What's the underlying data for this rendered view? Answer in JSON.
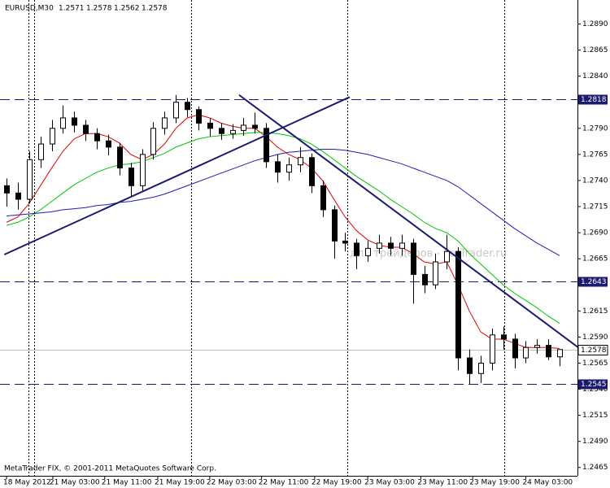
{
  "chart_data": {
    "type": "candlestick",
    "title": "EURUSD,M30",
    "footer": "MetaTrader FIX, © 2001-2011 MetaQuotes Software Corp.",
    "watermark": "для трейдеров - ForTrader.ru",
    "open": [
      1.2735,
      1.2728,
      1.2722,
      1.276,
      1.2775,
      1.279,
      1.28,
      1.2793,
      1.2785,
      1.2778,
      1.2772,
      1.2752,
      1.2735,
      1.2765,
      1.279,
      1.28,
      1.2815,
      1.2808,
      1.2795,
      1.279,
      1.2785,
      1.2788,
      1.2793,
      1.279,
      1.2758,
      1.2748,
      1.2755,
      1.2762,
      1.2735,
      1.2712,
      1.2682,
      1.268,
      1.2668,
      1.2675,
      1.268,
      1.2675,
      1.268,
      1.265,
      1.264,
      1.2662,
      1.2672,
      1.257,
      1.2555,
      1.2565,
      1.2592,
      1.2588,
      1.257,
      1.258,
      1.2582,
      1.2571
    ],
    "high": [
      1.2742,
      1.2738,
      1.2768,
      1.2782,
      1.2798,
      1.2812,
      1.2806,
      1.2798,
      1.279,
      1.2784,
      1.2776,
      1.2757,
      1.277,
      1.2796,
      1.2806,
      1.2822,
      1.2819,
      1.2811,
      1.28,
      1.2795,
      1.2794,
      1.28,
      1.2805,
      1.2795,
      1.2765,
      1.2762,
      1.2772,
      1.2766,
      1.274,
      1.2716,
      1.269,
      1.2684,
      1.2682,
      1.2688,
      1.2686,
      1.2688,
      1.2684,
      1.2658,
      1.267,
      1.2688,
      1.2676,
      1.2578,
      1.2572,
      1.2598,
      1.26,
      1.2593,
      1.2586,
      1.2588,
      1.2588,
      1.2578
    ],
    "low": [
      1.2715,
      1.2712,
      1.2718,
      1.2752,
      1.2768,
      1.2785,
      1.2786,
      1.2778,
      1.277,
      1.2764,
      1.2745,
      1.2725,
      1.273,
      1.276,
      1.2784,
      1.2795,
      1.2801,
      1.2788,
      1.2782,
      1.2779,
      1.278,
      1.2783,
      1.2785,
      1.2752,
      1.2738,
      1.274,
      1.2748,
      1.2728,
      1.2705,
      1.2665,
      1.2672,
      1.2655,
      1.2662,
      1.267,
      1.2668,
      1.2668,
      1.2622,
      1.2632,
      1.2636,
      1.2655,
      1.2558,
      1.2545,
      1.2546,
      1.2558,
      1.2578,
      1.256,
      1.2565,
      1.2574,
      1.2568,
      1.2562
    ],
    "close": [
      1.2728,
      1.2722,
      1.276,
      1.2775,
      1.279,
      1.28,
      1.2793,
      1.2785,
      1.2778,
      1.2772,
      1.2752,
      1.2735,
      1.2765,
      1.279,
      1.28,
      1.2815,
      1.2808,
      1.2795,
      1.279,
      1.2785,
      1.2788,
      1.2793,
      1.279,
      1.2758,
      1.2748,
      1.2755,
      1.2762,
      1.2735,
      1.2712,
      1.2682,
      1.268,
      1.2668,
      1.2675,
      1.268,
      1.2675,
      1.268,
      1.265,
      1.264,
      1.2662,
      1.2672,
      1.257,
      1.2555,
      1.2565,
      1.2592,
      1.2588,
      1.257,
      1.258,
      1.2582,
      1.2571,
      1.2578
    ],
    "series": [
      {
        "color": "#e00000",
        "values": [
          1.27,
          1.2705,
          1.2718,
          1.2735,
          1.2752,
          1.2768,
          1.278,
          1.2785,
          1.2785,
          1.2782,
          1.2776,
          1.2765,
          1.276,
          1.2765,
          1.2775,
          1.279,
          1.28,
          1.2803,
          1.28,
          1.2795,
          1.2792,
          1.279,
          1.279,
          1.2782,
          1.2772,
          1.2765,
          1.276,
          1.2752,
          1.274,
          1.2722,
          1.2705,
          1.2692,
          1.2683,
          1.2678,
          1.2676,
          1.2676,
          1.267,
          1.2662,
          1.266,
          1.2662,
          1.264,
          1.2615,
          1.2595,
          1.2588,
          1.2588,
          1.2584,
          1.258,
          1.258,
          1.258,
          1.2579
        ]
      },
      {
        "color": "#00c800",
        "values": [
          1.2697,
          1.27,
          1.2705,
          1.2712,
          1.272,
          1.2728,
          1.2736,
          1.2742,
          1.2748,
          1.2752,
          1.2755,
          1.2756,
          1.2758,
          1.2762,
          1.2766,
          1.2772,
          1.2776,
          1.278,
          1.2782,
          1.2783,
          1.2784,
          1.2785,
          1.2786,
          1.2786,
          1.2785,
          1.2783,
          1.278,
          1.2775,
          1.2768,
          1.276,
          1.2752,
          1.2744,
          1.2737,
          1.273,
          1.2722,
          1.2715,
          1.2708,
          1.27,
          1.2694,
          1.269,
          1.2682,
          1.267,
          1.266,
          1.265,
          1.264,
          1.2632,
          1.2625,
          1.2618,
          1.261,
          1.2603
        ]
      },
      {
        "color": "#1e1eb4",
        "values": [
          1.2706,
          1.2707,
          1.2708,
          1.2709,
          1.271,
          1.2712,
          1.2713,
          1.2714,
          1.2716,
          1.2717,
          1.2719,
          1.272,
          1.2722,
          1.2724,
          1.2727,
          1.2731,
          1.2735,
          1.2739,
          1.2743,
          1.2747,
          1.2751,
          1.2755,
          1.2759,
          1.2762,
          1.2765,
          1.2767,
          1.2768,
          1.2769,
          1.277,
          1.277,
          1.2769,
          1.2767,
          1.2765,
          1.2762,
          1.2759,
          1.2756,
          1.2752,
          1.2748,
          1.2744,
          1.274,
          1.2734,
          1.2726,
          1.2718,
          1.271,
          1.2702,
          1.2694,
          1.2687,
          1.268,
          1.2674,
          1.2668
        ]
      }
    ],
    "levels": [
      {
        "value": 1.2818
      },
      {
        "value": 1.2643
      },
      {
        "value": 1.2545
      }
    ],
    "trendlines": [
      {
        "color": "#1a1a6e",
        "x": [
          -0.2,
          30.4
        ],
        "y": [
          1.2669,
          1.282
        ]
      },
      {
        "color": "#1a1a6e",
        "x": [
          20.6,
          50.9
        ],
        "y": [
          1.2822,
          1.2578
        ]
      }
    ],
    "xlim": [
      -0.58,
      50.58
    ],
    "xticks": [
      {
        "value": 0,
        "label": "18 May 2012"
      },
      {
        "value": 4.1,
        "label": "21 May 03:00"
      },
      {
        "value": 8.7,
        "label": "21 May 11:00"
      },
      {
        "value": 13.4,
        "label": "21 May 19:00"
      },
      {
        "value": 18,
        "label": "22 May 03:00"
      },
      {
        "value": 22.6,
        "label": "22 May 11:00"
      },
      {
        "value": 27.3,
        "label": "22 May 19:00"
      },
      {
        "value": 32,
        "label": "23 May 03:00"
      },
      {
        "value": 36.7,
        "label": "23 May 11:00"
      },
      {
        "value": 41.3,
        "label": "23 May 19:00"
      },
      {
        "value": 46,
        "label": "24 May 03:00"
      }
    ],
    "ylim": [
      1.2457,
      1.2913
    ],
    "yticks": [
      {
        "value": 1.2465,
        "label": "1.2465"
      },
      {
        "value": 1.249,
        "label": "1.2490"
      },
      {
        "value": 1.2515,
        "label": "1.2515"
      },
      {
        "value": 1.254,
        "label": "1.2540"
      },
      {
        "value": 1.2565,
        "label": "1.2565"
      },
      {
        "value": 1.259,
        "label": "1.2590"
      },
      {
        "value": 1.2615,
        "label": "1.2615"
      },
      {
        "value": 1.264,
        "label": "1.2640"
      },
      {
        "value": 1.2665,
        "label": "1.2665"
      },
      {
        "value": 1.269,
        "label": "1.2690"
      },
      {
        "value": 1.2715,
        "label": "1.2715"
      },
      {
        "value": 1.274,
        "label": "1.2740"
      },
      {
        "value": 1.2765,
        "label": "1.2765"
      },
      {
        "value": 1.279,
        "label": "1.2790"
      },
      {
        "value": 1.2815,
        "label": "1.2815"
      },
      {
        "value": 1.284,
        "label": "1.2840"
      },
      {
        "value": 1.2865,
        "label": "1.2865"
      },
      {
        "value": 1.289,
        "label": "1.2890"
      }
    ]
  }
}
